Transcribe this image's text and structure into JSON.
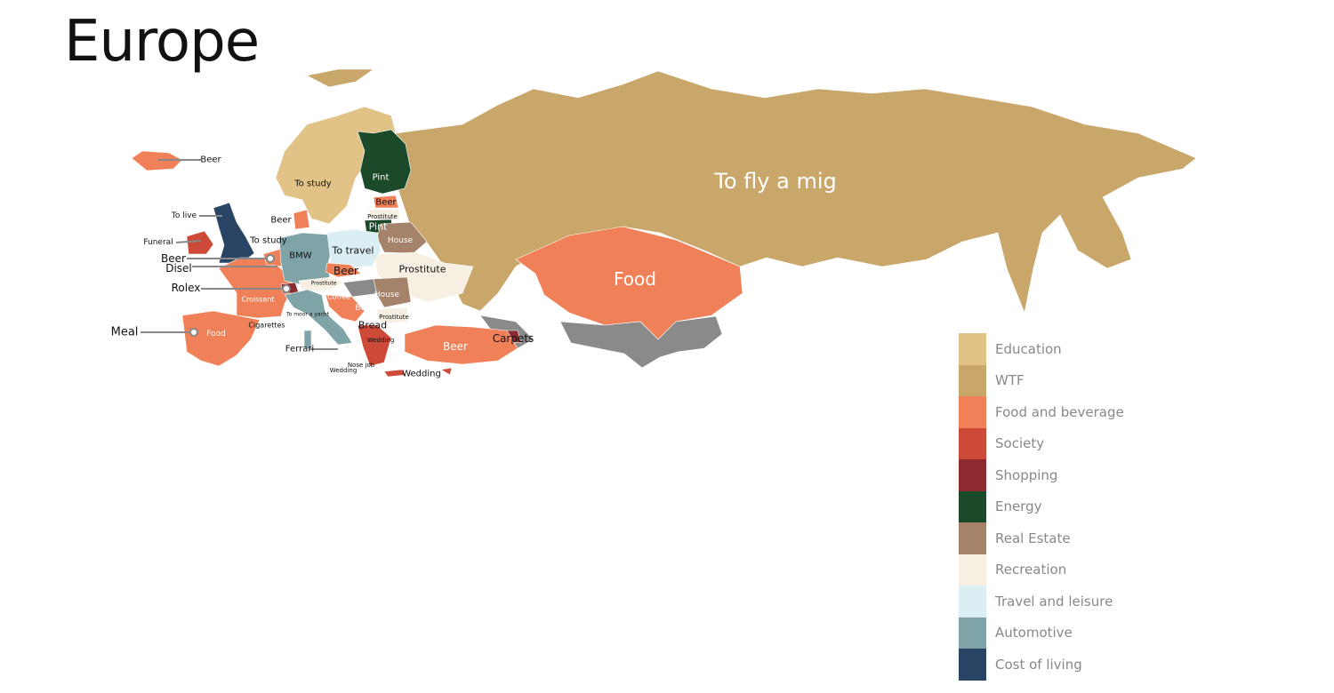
{
  "title": "Europe",
  "legend": [
    {
      "label": "Education",
      "color": "#e2c387"
    },
    {
      "label": "WTF",
      "color": "#c9a669"
    },
    {
      "label": "Food and beverage",
      "color": "#f08058"
    },
    {
      "label": "Society",
      "color": "#cc4a37"
    },
    {
      "label": "Shopping",
      "color": "#8c2a30"
    },
    {
      "label": "Energy",
      "color": "#1a4a2a"
    },
    {
      "label": "Real Estate",
      "color": "#a4836a"
    },
    {
      "label": "Recreation",
      "color": "#f6efe2"
    },
    {
      "label": "Travel and leisure",
      "color": "#dbeef4"
    },
    {
      "label": "Automotive",
      "color": "#7fa4a8"
    },
    {
      "label": "Cost of living",
      "color": "#2a4466"
    }
  ],
  "uncategorized_color": "#8a8a8a",
  "labels": [
    "To fly a mig",
    "Food",
    "Beer",
    "Carpets",
    "Pint",
    "Beer",
    "Prostitute",
    "Pint",
    "House",
    "Prostitute",
    "To travel",
    "BMW",
    "Beer",
    "To study",
    "Beer",
    "To live",
    "Funeral",
    "To study",
    "Beer",
    "Disel",
    "Rolex",
    "Croissant",
    "Meal",
    "Food",
    "Cigarettes",
    "To moor a yacht",
    "Prostitute",
    "Coffee",
    "Beer",
    "House",
    "Prostitute",
    "Bread",
    "Wedding",
    "Ferrari",
    "Wedding",
    "Nose job",
    "Wedding",
    "Beer"
  ]
}
